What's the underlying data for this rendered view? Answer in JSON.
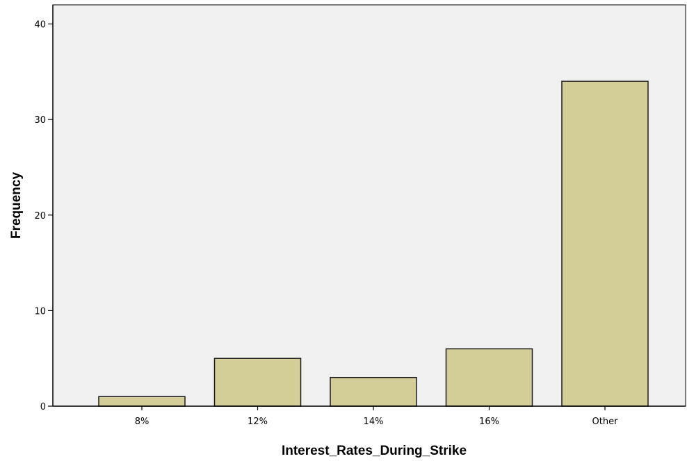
{
  "chart_data": {
    "type": "bar",
    "title": "",
    "xlabel": "Interest_Rates_During_Strike",
    "ylabel": "Frequency",
    "categories": [
      "8%",
      "12%",
      "14%",
      "16%",
      "Other"
    ],
    "values": [
      1,
      5,
      3,
      6,
      34
    ],
    "ylim": [
      0,
      42
    ],
    "yticks": [
      0,
      10,
      20,
      30,
      40
    ],
    "grid": false,
    "legend": "none",
    "colors": {
      "bar_fill": "#d3ce97",
      "bar_stroke": "#1a1a1a",
      "plot_background": "#f0f0f0",
      "axis": "#000000"
    }
  }
}
